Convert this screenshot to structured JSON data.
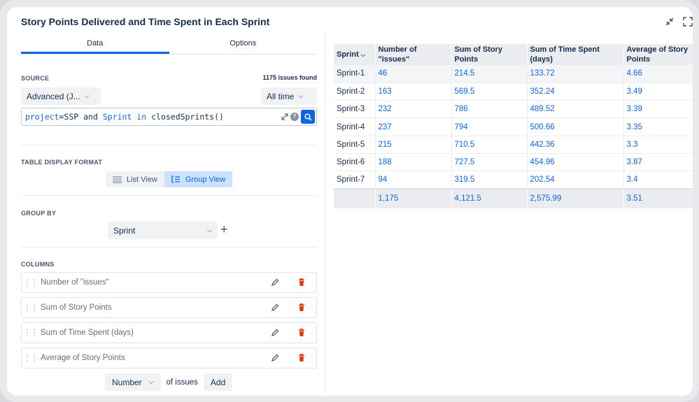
{
  "title": "Story Points Delivered and Time Spent in Each Sprint",
  "tabs": [
    {
      "label": "Data",
      "active": true
    },
    {
      "label": "Options",
      "active": false
    }
  ],
  "source": {
    "label": "SOURCE",
    "mode": "Advanced (J...",
    "time_range": "All time",
    "issues_found": "1175 issues found",
    "jql": {
      "p1": "project",
      "p2": "=SSP ",
      "p3": "and",
      "p4": " ",
      "p5": "Sprint",
      "p6": " ",
      "p7": "in",
      "p8": " closedSprints()"
    }
  },
  "table_display": {
    "label": "TABLE DISPLAY FORMAT",
    "list_view": "List View",
    "group_view": "Group View",
    "selected": "Group View"
  },
  "group_by": {
    "label": "GROUP BY",
    "value": "Sprint"
  },
  "columns": {
    "label": "COLUMNS",
    "items": [
      "Number of \"issues\"",
      "Sum of Story Points",
      "Sum of Time Spent (days)",
      "Average of Story Points"
    ],
    "add_type": "Number",
    "add_of": "of issues",
    "add_button": "Add"
  },
  "table": {
    "headers": [
      "Sprint",
      "Number of \"issues\"",
      "Sum of Story Points",
      "Sum of Time Spent (days)",
      "Average of Story Points"
    ],
    "rows": [
      [
        "Sprint-1",
        "46",
        "214.5",
        "133.72",
        "4.66"
      ],
      [
        "Sprint-2",
        "163",
        "569.5",
        "352.24",
        "3.49"
      ],
      [
        "Sprint-3",
        "232",
        "786",
        "489.52",
        "3.39"
      ],
      [
        "Sprint-4",
        "237",
        "794",
        "500.66",
        "3.35"
      ],
      [
        "Sprint-5",
        "215",
        "710.5",
        "442.36",
        "3.3"
      ],
      [
        "Sprint-6",
        "188",
        "727.5",
        "454.96",
        "3.87"
      ],
      [
        "Sprint-7",
        "94",
        "319.5",
        "202.54",
        "3.4"
      ]
    ],
    "totals": [
      "",
      "1,175",
      "4,121.5",
      "2,575.99",
      "3.51"
    ]
  },
  "colors": {
    "accent": "#0c66e4",
    "delete": "#de350b"
  }
}
